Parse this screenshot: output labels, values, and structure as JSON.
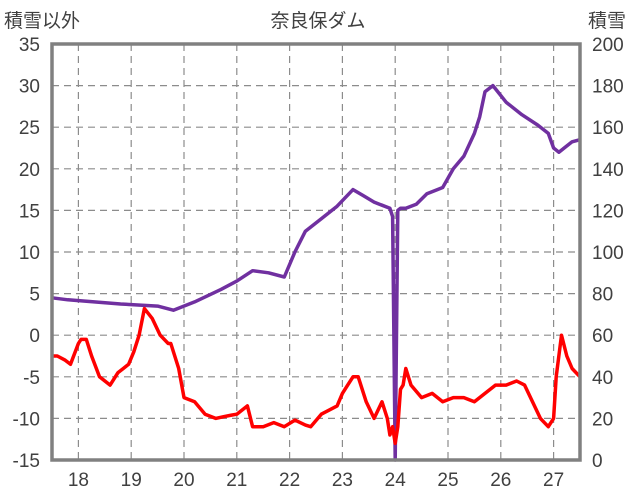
{
  "chart_data": {
    "type": "line",
    "title": "奈良保ダム",
    "ylabel_left": "積雪以外",
    "ylabel_right": "積雪",
    "x_ticks": [
      "18",
      "19",
      "20",
      "21",
      "22",
      "23",
      "24",
      "25",
      "26",
      "27"
    ],
    "y_left_ticks": [
      "35",
      "30",
      "25",
      "20",
      "15",
      "10",
      "5",
      "0",
      "-5",
      "-10",
      "-15"
    ],
    "y_right_ticks": [
      "200",
      "180",
      "160",
      "140",
      "120",
      "100",
      "80",
      "60",
      "40",
      "20",
      "0"
    ],
    "ylim_left": [
      -15,
      35
    ],
    "ylim_right": [
      0,
      200
    ],
    "xlim": [
      17.5,
      27.5
    ],
    "grid": true,
    "series": [
      {
        "axis": "right",
        "color": "#7030A0",
        "x": [
          17.5,
          17.8,
          18.3,
          18.8,
          19.5,
          19.8,
          20.2,
          20.7,
          21.0,
          21.3,
          21.6,
          21.9,
          22.1,
          22.3,
          22.6,
          22.9,
          23.2,
          23.4,
          23.6,
          23.9,
          23.9,
          23.95,
          24.0,
          24.05,
          24.1,
          24.2,
          24.4,
          24.6,
          24.8,
          24.9,
          25.1,
          25.3,
          25.5,
          25.6,
          25.7,
          25.85,
          26.1,
          26.4,
          26.7,
          26.9,
          27.0,
          27.1,
          27.2,
          27.35,
          27.5
        ],
        "values": [
          78,
          77,
          76,
          75,
          74,
          72,
          76,
          82,
          86,
          91,
          90,
          88,
          100,
          110,
          116,
          122,
          130,
          127,
          124,
          121,
          121,
          117,
          0,
          120,
          121,
          121,
          123,
          128,
          130,
          131,
          140,
          146,
          157,
          165,
          177,
          180,
          172,
          166,
          161,
          157,
          150,
          148,
          150,
          153,
          154
        ]
      },
      {
        "axis": "left",
        "color": "#FF0000",
        "x": [
          17.5,
          17.6,
          17.75,
          17.85,
          18.0,
          18.05,
          18.15,
          18.25,
          18.4,
          18.6,
          18.75,
          18.85,
          18.95,
          19.05,
          19.15,
          19.25,
          19.4,
          19.55,
          19.7,
          19.75,
          19.9,
          20.0,
          20.2,
          20.4,
          20.6,
          20.75,
          20.9,
          21.0,
          21.2,
          21.3,
          21.5,
          21.7,
          21.9,
          22.1,
          22.3,
          22.4,
          22.6,
          22.75,
          22.9,
          23.0,
          23.1,
          23.2,
          23.3,
          23.45,
          23.6,
          23.75,
          23.85,
          23.9,
          23.95,
          24.0,
          24.05,
          24.1,
          24.15,
          24.2,
          24.3,
          24.5,
          24.7,
          24.9,
          25.1,
          25.3,
          25.5,
          25.7,
          25.9,
          26.1,
          26.3,
          26.45,
          26.6,
          26.75,
          26.9,
          27.0,
          27.05,
          27.15,
          27.25,
          27.35,
          27.5
        ],
        "values": [
          -2.5,
          -2.5,
          -3,
          -3.5,
          -1,
          -0.5,
          -0.5,
          -2.5,
          -5,
          -6,
          -4.5,
          -4,
          -3.5,
          -2,
          0,
          3.2,
          2,
          0,
          -1,
          -1,
          -4,
          -7.5,
          -8,
          -9.5,
          -10,
          -9.8,
          -9.6,
          -9.5,
          -8.5,
          -11,
          -11,
          -10.5,
          -11,
          -10.2,
          -10.8,
          -11,
          -9.5,
          -9,
          -8.5,
          -7,
          -6,
          -5,
          -5,
          -8,
          -10,
          -8,
          -10,
          -12,
          -11,
          -13,
          -11,
          -6.5,
          -6,
          -4,
          -6,
          -7.5,
          -7,
          -8,
          -7.5,
          -7.5,
          -8,
          -7,
          -6,
          -6,
          -5.5,
          -6,
          -8,
          -10,
          -11,
          -10,
          -5,
          0,
          -2.5,
          -4,
          -5
        ]
      }
    ]
  }
}
